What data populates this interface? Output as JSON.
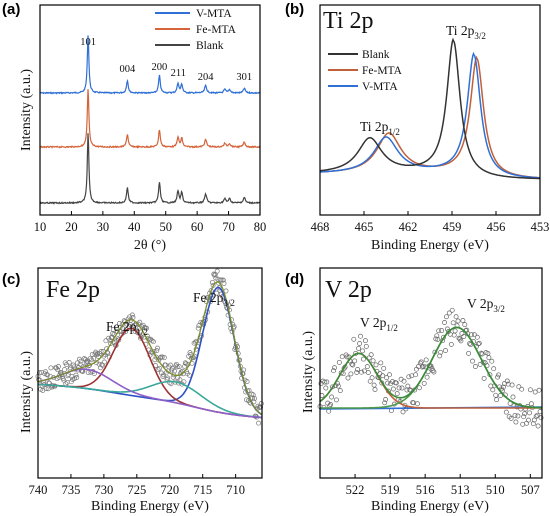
{
  "chart_data": [
    {
      "panel": "(a)",
      "type": "line",
      "xlabel": "2θ (°)",
      "ylabel": "Intensity (a.u.)",
      "xlim": [
        10,
        80
      ],
      "xticks": [
        "10",
        "20",
        "30",
        "40",
        "50",
        "60",
        "70",
        "80"
      ],
      "peak_labels": [
        {
          "x": 25.3,
          "text": "101"
        },
        {
          "x": 37.8,
          "text": "004"
        },
        {
          "x": 48.0,
          "text": "200"
        },
        {
          "x": 54.0,
          "text": "211"
        },
        {
          "x": 62.7,
          "text": "204"
        },
        {
          "x": 75.0,
          "text": "301"
        }
      ],
      "peaks": [
        {
          "x": 25.3,
          "h": 1.0,
          "w": 0.55
        },
        {
          "x": 37.8,
          "h": 0.22,
          "w": 0.6
        },
        {
          "x": 48.0,
          "h": 0.3,
          "w": 0.6
        },
        {
          "x": 53.9,
          "h": 0.17,
          "w": 0.6
        },
        {
          "x": 55.1,
          "h": 0.15,
          "w": 0.6
        },
        {
          "x": 62.7,
          "h": 0.13,
          "w": 0.7
        },
        {
          "x": 68.8,
          "h": 0.06,
          "w": 0.7
        },
        {
          "x": 70.3,
          "h": 0.06,
          "w": 0.7
        },
        {
          "x": 75.0,
          "h": 0.08,
          "w": 0.7
        }
      ],
      "series": [
        {
          "name": "V-MTA",
          "color": "#2f6fd6",
          "offset": 2.0
        },
        {
          "name": "Fe-MTA",
          "color": "#d5643a",
          "offset": 1.0
        },
        {
          "name": "Blank",
          "color": "#444444",
          "offset": 0.0
        }
      ]
    },
    {
      "panel": "(b)",
      "type": "line",
      "title": "Ti 2p",
      "xlabel": "Binding Energy (eV)",
      "xlim": [
        468,
        453
      ],
      "xticks": [
        "468",
        "465",
        "462",
        "459",
        "456",
        "453"
      ],
      "annotations": [
        {
          "text": "Ti 2p",
          "sub": "1/2"
        },
        {
          "text": "Ti 2p",
          "sub": "3/2"
        }
      ],
      "series": [
        {
          "name": "Blank",
          "color": "#333333",
          "p32": 458.9,
          "p12": 464.6
        },
        {
          "name": "Fe-MTA",
          "color": "#c0603a",
          "p32": 457.3,
          "p12": 463.3
        },
        {
          "name": "V-MTA",
          "color": "#2f6fd6",
          "p32": 457.5,
          "p12": 463.5
        }
      ]
    },
    {
      "panel": "(c)",
      "type": "scatter",
      "title": "Fe 2p",
      "xlabel": "Binding Energy (eV)",
      "ylabel": "Intensity (a.u.)",
      "xlim": [
        740,
        706
      ],
      "xticks": [
        "740",
        "735",
        "730",
        "725",
        "720",
        "715",
        "710"
      ],
      "annotations": [
        {
          "text": "Fe 2p",
          "sub": "1/2"
        },
        {
          "text": "Fe 2p",
          "sub": "3/2"
        }
      ],
      "fit_components": [
        {
          "center": 712.6,
          "height": 0.78,
          "width": 2.0,
          "color": "#2f52c4"
        },
        {
          "center": 725.8,
          "height": 0.42,
          "width": 2.3,
          "color": "#9e3232"
        },
        {
          "center": 719.0,
          "height": 0.13,
          "width": 3.2,
          "color": "#3aa89a"
        },
        {
          "center": 732.5,
          "height": 0.12,
          "width": 3.2,
          "color": "#8e5fc8"
        }
      ],
      "envelope_color": "#7a8d2a"
    },
    {
      "panel": "(d)",
      "type": "scatter",
      "title": "V 2p",
      "xlabel": "Binding Energy (eV)",
      "ylabel": "Intensity (a.u.)",
      "xlim": [
        525,
        506
      ],
      "xticks": [
        "522",
        "519",
        "516",
        "513",
        "510",
        "507"
      ],
      "annotations": [
        {
          "text": "V 2p",
          "sub": "1/2"
        },
        {
          "text": "V 2p",
          "sub": "3/2"
        }
      ],
      "fit_components": [
        {
          "center": 521.7,
          "height": 0.42,
          "width": 1.6,
          "color": "#c0603a"
        },
        {
          "center": 513.3,
          "height": 0.62,
          "width": 2.1,
          "color": "#4f9a4a"
        }
      ],
      "baseline_color": "#2f6fd6"
    }
  ]
}
